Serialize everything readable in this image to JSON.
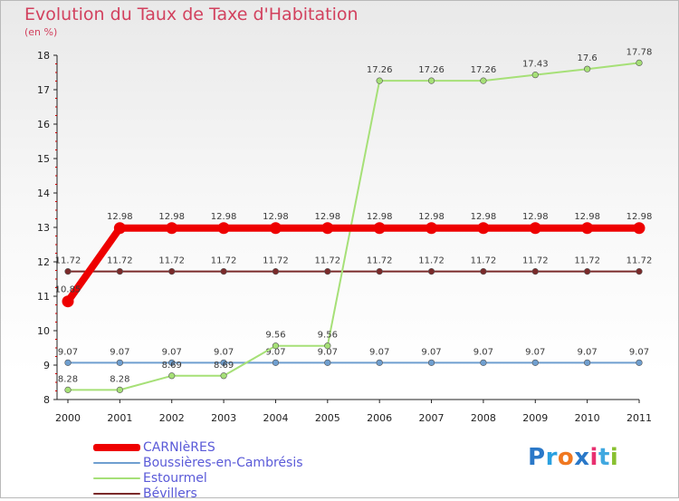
{
  "title": "Evolution du Taux de Taxe d'Habitation",
  "subtitle": "(en %)",
  "logo": {
    "letters": [
      "P",
      "r",
      "o",
      "x",
      "i",
      "t",
      "i"
    ],
    "colors": [
      "#2a78c8",
      "#2aa0e0",
      "#f07820",
      "#2a78c8",
      "#e83070",
      "#40a8e0",
      "#88c030"
    ]
  },
  "chart_data": {
    "type": "line",
    "x": [
      "2000",
      "2001",
      "2002",
      "2003",
      "2004",
      "2005",
      "2006",
      "2007",
      "2008",
      "2009",
      "2010",
      "2011"
    ],
    "ylim": [
      8,
      18
    ],
    "yticks": [
      "8",
      "9",
      "10",
      "11",
      "12",
      "13",
      "14",
      "15",
      "16",
      "17",
      "18"
    ],
    "grid": false,
    "legend_position": "bottom-left",
    "series": [
      {
        "name": "Bévillers",
        "color": "#7a2a2a",
        "values": [
          11.72,
          11.72,
          11.72,
          11.72,
          11.72,
          11.72,
          11.72,
          11.72,
          11.72,
          11.72,
          11.72,
          11.72
        ],
        "labels": [
          "11.72",
          "11.72",
          "11.72",
          "11.72",
          "11.72",
          "11.72",
          "11.72",
          "11.72",
          "11.72",
          "11.72",
          "11.72",
          "11.72"
        ]
      },
      {
        "name": "Boussières-en-Cambrésis",
        "color": "#6f9fd0",
        "values": [
          9.07,
          9.07,
          9.07,
          9.07,
          9.07,
          9.07,
          9.07,
          9.07,
          9.07,
          9.07,
          9.07,
          9.07
        ],
        "labels": [
          "9.07",
          "9.07",
          "9.07",
          "9.07",
          "9.07",
          "9.07",
          "9.07",
          "9.07",
          "9.07",
          "9.07",
          "9.07",
          "9.07"
        ]
      },
      {
        "name": "Estourmel",
        "color": "#a6e077",
        "values": [
          8.28,
          8.28,
          8.69,
          8.69,
          9.56,
          9.56,
          17.26,
          17.26,
          17.26,
          17.43,
          17.6,
          17.78
        ],
        "labels": [
          "8.28",
          "8.28",
          "8.69",
          "8.69",
          "9.56",
          "9.56",
          "17.26",
          "17.26",
          "17.26",
          "17.43",
          "17.6",
          "17.78"
        ]
      },
      {
        "name": "CARNIèRES",
        "color": "#ee0000",
        "values": [
          10.85,
          12.98,
          12.98,
          12.98,
          12.98,
          12.98,
          12.98,
          12.98,
          12.98,
          12.98,
          12.98,
          12.98
        ],
        "labels": [
          "10.85",
          "12.98",
          "12.98",
          "12.98",
          "12.98",
          "12.98",
          "12.98",
          "12.98",
          "12.98",
          "12.98",
          "12.98",
          "12.98"
        ]
      }
    ],
    "legend": [
      {
        "label": "CARNIèRES",
        "color": "#ee0000"
      },
      {
        "label": "Boussières-en-Cambrésis",
        "color": "#6f9fd0"
      },
      {
        "label": "Estourmel",
        "color": "#a6e077"
      },
      {
        "label": "Bévillers",
        "color": "#7a2a2a"
      }
    ]
  }
}
